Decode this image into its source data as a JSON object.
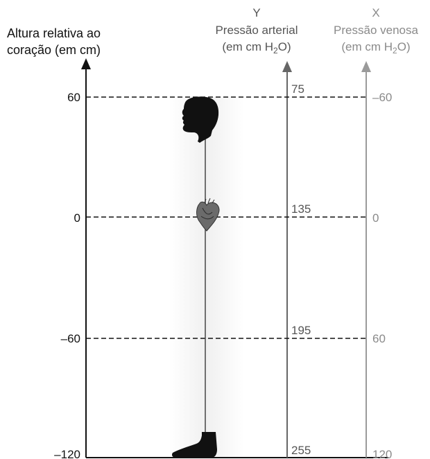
{
  "height_axis": {
    "label_line1": "Altura relativa ao",
    "label_line2": "coração (em cm)",
    "ticks": [
      "60",
      "0",
      "–60",
      "–120"
    ]
  },
  "arterial_axis": {
    "letter": "Y",
    "title": "Pressão arterial",
    "unit_prefix": "(em cm H",
    "unit_sub": "2",
    "unit_suffix": "O)",
    "values": [
      "75",
      "135",
      "195",
      "255"
    ]
  },
  "venous_axis": {
    "letter": "X",
    "title": "Pressão venosa",
    "unit_prefix": "(em cm H",
    "unit_sub": "2",
    "unit_suffix": "O)",
    "values": [
      "–60",
      "0",
      "60",
      "120"
    ]
  },
  "figure": {
    "parts": [
      "head-silhouette",
      "heart-icon",
      "foot-silhouette"
    ]
  },
  "colors": {
    "dark": "#111111",
    "arterial": "#666666",
    "venous": "#9a9a9a",
    "body_band": "#f2f2f2"
  }
}
